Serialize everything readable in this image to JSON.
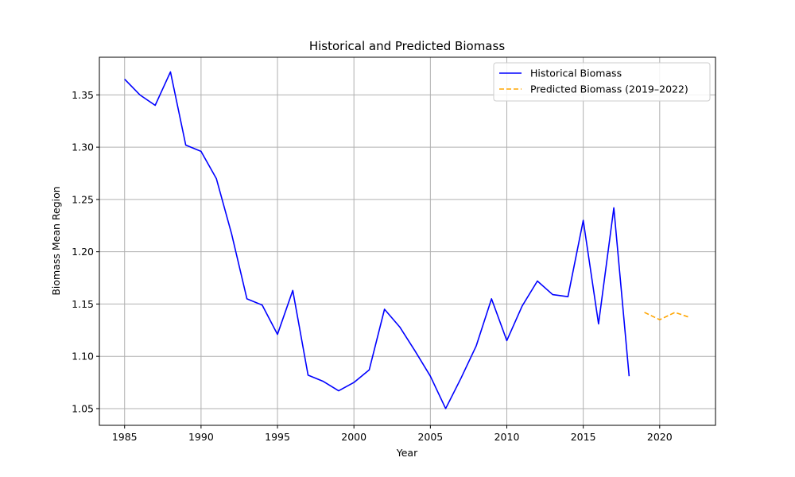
{
  "chart_data": {
    "type": "line",
    "title": "Historical and Predicted Biomass",
    "xlabel": "Year",
    "ylabel": "Biomass Mean Region",
    "xlim": [
      1983.35,
      2023.65
    ],
    "ylim": [
      1.034,
      1.386
    ],
    "x_ticks": [
      1985,
      1990,
      1995,
      2000,
      2005,
      2010,
      2015,
      2020
    ],
    "y_ticks": [
      1.05,
      1.1,
      1.15,
      1.2,
      1.25,
      1.3,
      1.35
    ],
    "y_tick_labels": [
      "1.05",
      "1.10",
      "1.15",
      "1.20",
      "1.25",
      "1.30",
      "1.35"
    ],
    "grid": true,
    "legend_position": "top-right",
    "series": [
      {
        "name": "Historical Biomass",
        "color": "#0000ff",
        "style": "solid",
        "x": [
          1985,
          1986,
          1987,
          1988,
          1989,
          1990,
          1991,
          1992,
          1993,
          1994,
          1995,
          1996,
          1997,
          1998,
          1999,
          2000,
          2001,
          2002,
          2003,
          2004,
          2005,
          2006,
          2007,
          2008,
          2009,
          2010,
          2011,
          2012,
          2013,
          2014,
          2015,
          2016,
          2017,
          2018
        ],
        "values": [
          1.365,
          1.35,
          1.34,
          1.372,
          1.302,
          1.296,
          1.27,
          1.217,
          1.155,
          1.149,
          1.121,
          1.163,
          1.082,
          1.076,
          1.067,
          1.075,
          1.087,
          1.145,
          1.128,
          1.105,
          1.081,
          1.05,
          1.079,
          1.11,
          1.155,
          1.115,
          1.148,
          1.172,
          1.159,
          1.157,
          1.23,
          1.131,
          1.242,
          1.081
        ]
      },
      {
        "name": "Predicted Biomass (2019–2022)",
        "color": "#ffa500",
        "style": "dashed",
        "x": [
          2019,
          2020,
          2021,
          2022
        ],
        "values": [
          1.142,
          1.135,
          1.142,
          1.137
        ]
      }
    ]
  }
}
